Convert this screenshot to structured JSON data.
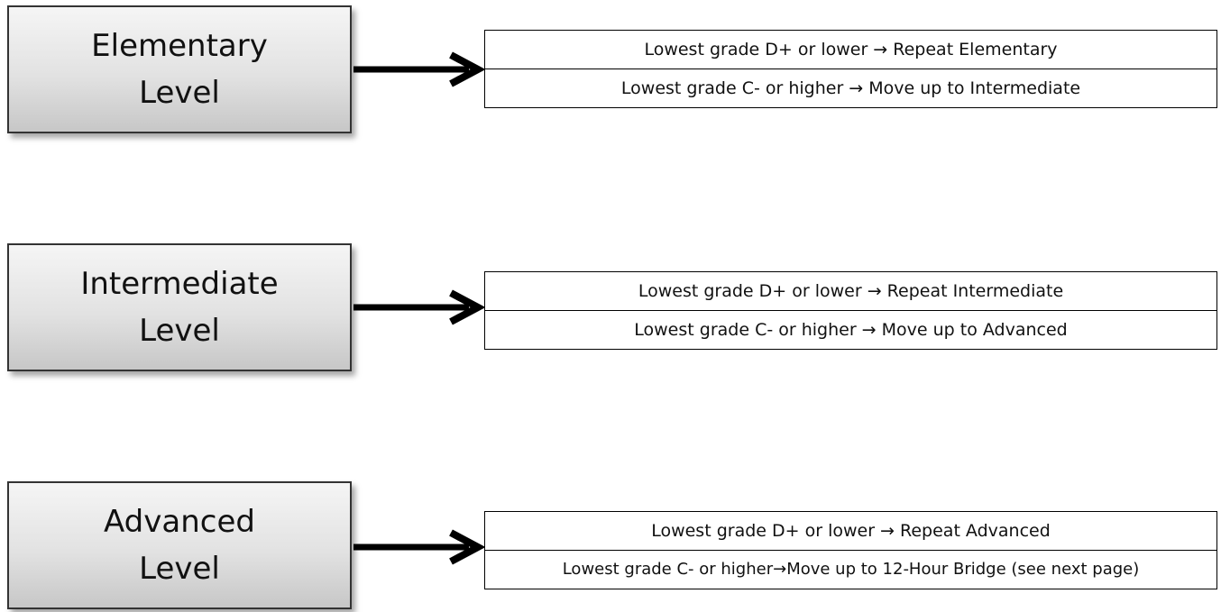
{
  "levels": [
    {
      "line1": "Elementary",
      "line2": "Level",
      "outcomes": [
        "Lowest grade D+ or lower → Repeat Elementary",
        "Lowest grade C- or higher → Move up to Intermediate"
      ]
    },
    {
      "line1": "Intermediate",
      "line2": "Level",
      "outcomes": [
        "Lowest grade D+ or lower → Repeat Intermediate",
        "Lowest grade C- or higher → Move up to Advanced"
      ]
    },
    {
      "line1": "Advanced",
      "line2": "Level",
      "outcomes": [
        "Lowest grade D+ or lower → Repeat Advanced",
        "Lowest grade C- or higher→Move up to 12-Hour Bridge (see next page)"
      ]
    }
  ],
  "colors": {
    "box_border": "#333333",
    "box_fill_top": "#f5f5f5",
    "box_fill_bottom": "#c7c7c7",
    "arrow": "#000000",
    "table_border": "#000000"
  },
  "icons": {
    "connector": "right-arrow-icon"
  }
}
